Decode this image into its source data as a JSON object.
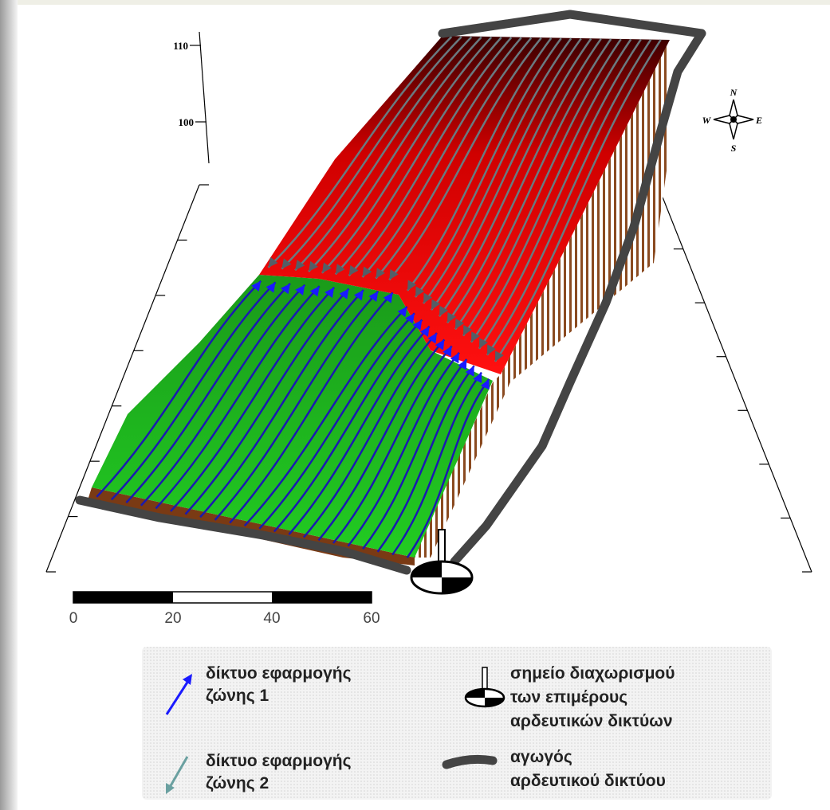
{
  "axis": {
    "ticks": [
      "110",
      "100"
    ]
  },
  "compass": {
    "north": "N",
    "west": "W",
    "east": "E",
    "south": "S"
  },
  "scale_bar": {
    "labels": [
      "0",
      "20",
      "40",
      "60"
    ]
  },
  "legend": {
    "items": [
      {
        "lines": [
          "δίκτυο εφαρμογής",
          "ζώνης 1"
        ]
      },
      {
        "lines": [
          "σημείο διαχωρισμού",
          "των επιμέρους",
          "αρδευτικών δικτύων"
        ]
      },
      {
        "lines": [
          "δίκτυο εφαρμογής",
          "ζώνης 2"
        ]
      },
      {
        "lines": [
          "αγωγός",
          "αρδευτικού δικτύου"
        ]
      }
    ]
  }
}
